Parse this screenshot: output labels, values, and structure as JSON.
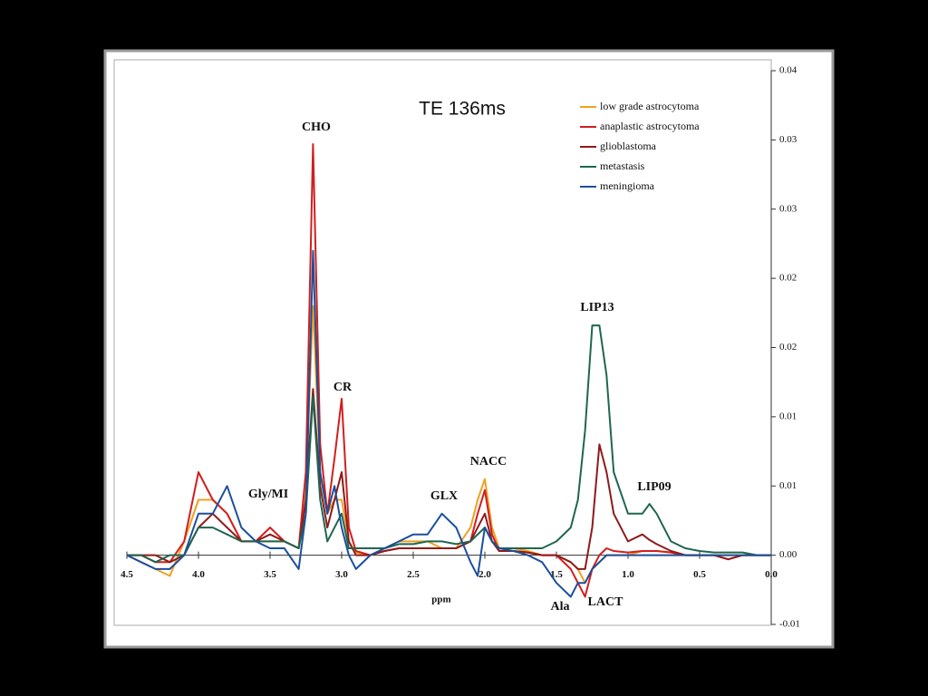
{
  "chart_data": {
    "type": "line",
    "title": "TE 136ms",
    "x_label": "ppm",
    "x": [
      4.5,
      4.4,
      4.3,
      4.2,
      4.1,
      4.0,
      3.9,
      3.8,
      3.7,
      3.6,
      3.5,
      3.4,
      3.3,
      3.25,
      3.2,
      3.15,
      3.1,
      3.05,
      3.0,
      2.95,
      2.9,
      2.8,
      2.7,
      2.6,
      2.5,
      2.4,
      2.3,
      2.2,
      2.1,
      2.05,
      2.0,
      1.95,
      1.9,
      1.8,
      1.7,
      1.6,
      1.5,
      1.4,
      1.35,
      1.3,
      1.25,
      1.2,
      1.15,
      1.1,
      1.0,
      0.9,
      0.85,
      0.8,
      0.7,
      0.6,
      0.5,
      0.4,
      0.3,
      0.2,
      0.1,
      0.0
    ],
    "xlim": [
      4.5,
      0.0
    ],
    "xticks": [
      4.5,
      {
        "value": 4.0,
        "label": "4.0"
      },
      3.5,
      {
        "value": 3.0,
        "label": "3.0"
      },
      2.5,
      {
        "value": 2.0,
        "label": "2.0"
      },
      1.5,
      {
        "value": 1.0,
        "label": "1.0"
      },
      0.5,
      {
        "value": 0.0,
        "label": "0.0"
      }
    ],
    "ylim": [
      -0.005,
      0.035
    ],
    "yticks": [
      {
        "value": -0.005,
        "label": "-0.01"
      },
      {
        "value": 0,
        "label": "0.00"
      },
      {
        "value": 0.005,
        "label": "0.01"
      },
      {
        "value": 0.01,
        "label": "0.01"
      },
      {
        "value": 0.015,
        "label": "0.02"
      },
      {
        "value": 0.02,
        "label": "0.02"
      },
      {
        "value": 0.025,
        "label": "0.03"
      },
      {
        "value": 0.03,
        "label": "0.03"
      },
      {
        "value": 0.035,
        "label": "0.04"
      }
    ],
    "y_axis_side": "right",
    "legend": "upper right",
    "series": [
      {
        "name": "low grade astrocytoma",
        "color": "#f0a020",
        "values": [
          0,
          -0.0005,
          -0.001,
          -0.0015,
          0.001,
          0.004,
          0.004,
          0.003,
          0.001,
          0.001,
          0.001,
          0.001,
          0.0005,
          0.005,
          0.018,
          0.006,
          0.003,
          0.004,
          0.004,
          0.001,
          0.0002,
          0,
          0.0005,
          0.001,
          0.001,
          0.001,
          0.0005,
          0.0005,
          0.002,
          0.004,
          0.0055,
          0.002,
          0.0005,
          0.0005,
          0.0003,
          0,
          0,
          -0.0005,
          -0.001,
          -0.002,
          -0.001,
          -0.0005,
          0,
          0,
          0,
          0.0003,
          0.0003,
          0.0003,
          0.0002,
          0,
          0,
          0,
          0,
          0,
          0,
          0
        ]
      },
      {
        "name": "anaplastic astrocytoma",
        "color": "#d01f1f",
        "values": [
          0,
          0,
          -0.0005,
          -0.0005,
          0.001,
          0.006,
          0.004,
          0.003,
          0.001,
          0.001,
          0.002,
          0.001,
          0.0005,
          0.006,
          0.0297,
          0.008,
          0.003,
          0.007,
          0.0113,
          0.002,
          0.0003,
          0,
          0.0003,
          0.0005,
          0.0005,
          0.0005,
          0.0005,
          0.0005,
          0.001,
          0.003,
          0.0047,
          0.0015,
          0.0003,
          0.0003,
          0.0002,
          0,
          0,
          -0.001,
          -0.002,
          -0.003,
          -0.001,
          0,
          0.0005,
          0.0003,
          0.0002,
          0.0003,
          0.0003,
          0.0003,
          0.0002,
          0,
          0,
          0,
          -0.0003,
          0,
          0,
          0
        ]
      },
      {
        "name": "glioblastoma",
        "color": "#8e1b1b",
        "values": [
          0,
          0,
          0,
          -0.0005,
          0,
          0.002,
          0.003,
          0.002,
          0.001,
          0.001,
          0.0015,
          0.001,
          0.0005,
          0.004,
          0.012,
          0.005,
          0.002,
          0.004,
          0.006,
          0.001,
          0,
          0,
          0.0003,
          0.0005,
          0.0005,
          0.0005,
          0.0005,
          0.0005,
          0.001,
          0.002,
          0.003,
          0.001,
          0.0003,
          0.0003,
          0.0002,
          0,
          0,
          -0.0005,
          -0.001,
          -0.001,
          0.002,
          0.008,
          0.006,
          0.003,
          0.001,
          0.0015,
          0.0011,
          0.0008,
          0.0003,
          0,
          0,
          0,
          -0.0003,
          0,
          0,
          0
        ]
      },
      {
        "name": "metastasis",
        "color": "#1f6650",
        "values": [
          0,
          0,
          -0.0005,
          0,
          0,
          0.002,
          0.002,
          0.0015,
          0.001,
          0.001,
          0.001,
          0.001,
          0.0005,
          0.003,
          0.0115,
          0.004,
          0.001,
          0.002,
          0.003,
          0.0005,
          0.0005,
          0.0005,
          0.0005,
          0.0008,
          0.0008,
          0.001,
          0.001,
          0.0008,
          0.001,
          0.0015,
          0.002,
          0.001,
          0.0005,
          0.0005,
          0.0005,
          0.0005,
          0.001,
          0.002,
          0.004,
          0.009,
          0.0166,
          0.0166,
          0.013,
          0.006,
          0.003,
          0.003,
          0.0037,
          0.003,
          0.001,
          0.0005,
          0.0003,
          0.0002,
          0.0002,
          0.0002,
          0,
          0
        ]
      },
      {
        "name": "meningioma",
        "color": "#1c4f9c",
        "values": [
          0,
          -0.0005,
          -0.001,
          -0.001,
          0,
          0.003,
          0.003,
          0.005,
          0.002,
          0.001,
          0.0005,
          0.0005,
          -0.001,
          0.003,
          0.022,
          0.006,
          0.003,
          0.005,
          0.002,
          0,
          -0.001,
          0,
          0.0005,
          0.001,
          0.0015,
          0.0015,
          0.003,
          0.002,
          -0.0005,
          -0.0015,
          0.002,
          0.001,
          0.0005,
          0.0003,
          0,
          -0.0005,
          -0.002,
          -0.003,
          -0.002,
          -0.002,
          -0.001,
          -0.0005,
          0,
          0,
          0,
          0,
          0,
          0,
          0,
          0,
          0,
          0,
          0,
          0,
          0,
          0
        ]
      }
    ],
    "annotations": [
      "CHO",
      "CR",
      "Gly/MI",
      "GLX",
      "NACC",
      "LIP13",
      "LIP09",
      "Ala",
      "LACT"
    ]
  }
}
